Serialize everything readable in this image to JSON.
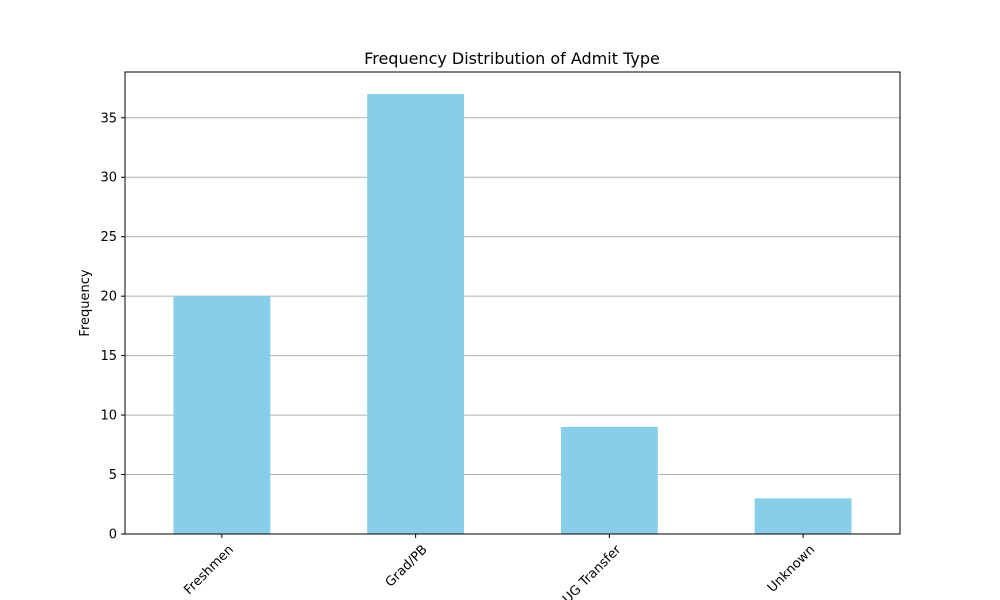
{
  "chart_data": {
    "type": "bar",
    "title": "Frequency Distribution of Admit Type",
    "xlabel": "",
    "ylabel": "Frequency",
    "categories": [
      "Freshmen",
      "Grad/PB",
      "UG Transfer",
      "Unknown"
    ],
    "values": [
      20,
      37,
      9,
      3
    ],
    "ylim": [
      0,
      38.85
    ],
    "yticks": [
      0,
      5,
      10,
      15,
      20,
      25,
      30,
      35
    ],
    "grid": "y",
    "legend": "none",
    "bar_color": "#87ceeb"
  }
}
